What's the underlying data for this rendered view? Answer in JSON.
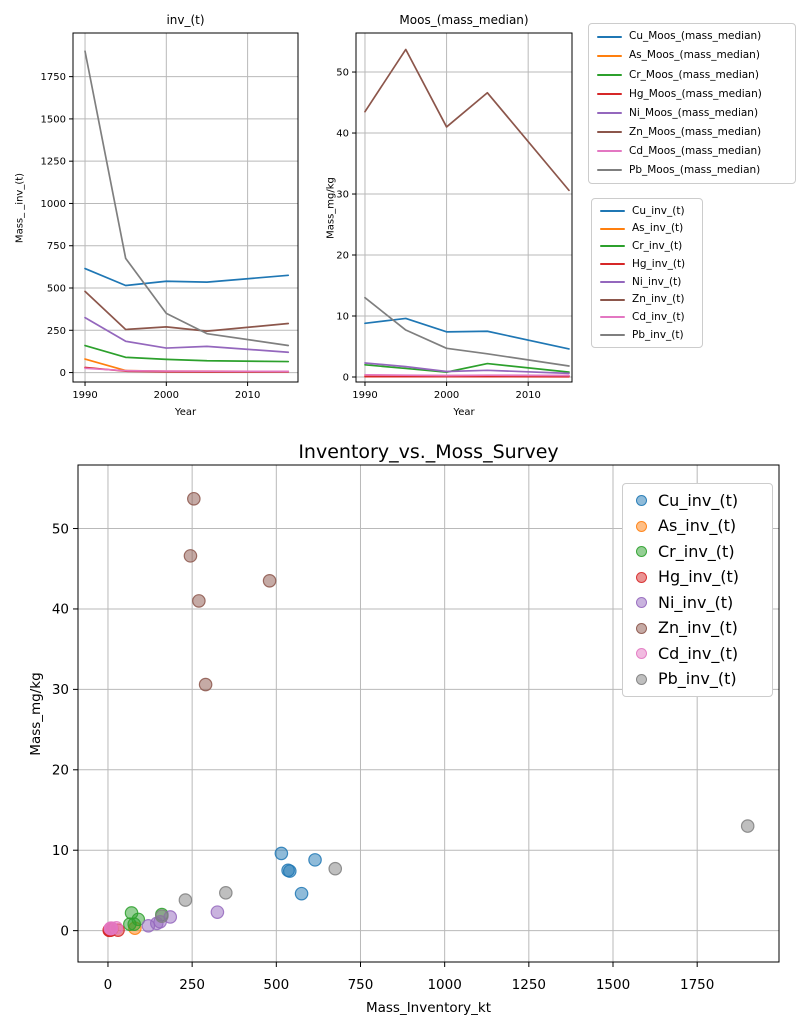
{
  "chart_data": [
    {
      "id": "inv",
      "type": "line",
      "title": "inv_(t)",
      "xlabel": "Year",
      "ylabel": "Mass_ _inv_(t)",
      "x": [
        1990,
        1995,
        2000,
        2005,
        2015
      ],
      "series": [
        {
          "name": "Cu_inv_(t)",
          "color": "#1f77b4",
          "values": [
            615,
            515,
            540,
            535,
            575
          ]
        },
        {
          "name": "As_inv_(t)",
          "color": "#ff7f0e",
          "values": [
            80,
            12,
            8,
            8,
            7
          ]
        },
        {
          "name": "Cr_inv_(t)",
          "color": "#2ca02c",
          "values": [
            160,
            90,
            78,
            70,
            65
          ]
        },
        {
          "name": "Hg_inv_(t)",
          "color": "#d62728",
          "values": [
            30,
            8,
            5,
            4,
            4
          ]
        },
        {
          "name": "Ni_inv_(t)",
          "color": "#9467bd",
          "values": [
            325,
            185,
            145,
            155,
            120
          ]
        },
        {
          "name": "Zn_inv_(t)",
          "color": "#8c564b",
          "values": [
            480,
            255,
            270,
            245,
            290
          ]
        },
        {
          "name": "Cd_inv_(t)",
          "color": "#e377c2",
          "values": [
            25,
            11,
            9,
            8,
            7
          ]
        },
        {
          "name": "Pb_inv_(t)",
          "color": "#7f7f7f",
          "values": [
            1900,
            675,
            350,
            230,
            160
          ]
        }
      ],
      "xticks": [
        1990,
        2000,
        2010
      ],
      "yticks": [
        0,
        250,
        500,
        750,
        1000,
        1250,
        1500,
        1750
      ],
      "xlim": [
        1988.52,
        2016.2
      ],
      "ylim": [
        -55.8,
        2008
      ],
      "grid": true,
      "legend_position": "outside-right"
    },
    {
      "id": "moss",
      "type": "line",
      "title": "Moos_(mass_median)",
      "xlabel": "Year",
      "ylabel": "Mass_mg/kg",
      "x": [
        1990,
        1995,
        2000,
        2005,
        2015
      ],
      "series": [
        {
          "name": "Cu_Moos_(mass_median)",
          "color": "#1f77b4",
          "values": [
            8.8,
            9.6,
            7.4,
            7.5,
            4.6
          ]
        },
        {
          "name": "As_Moos_(mass_median)",
          "color": "#ff7f0e",
          "values": [
            0.3,
            0.25,
            0.2,
            0.25,
            0.2
          ]
        },
        {
          "name": "Cr_Moos_(mass_median)",
          "color": "#2ca02c",
          "values": [
            2.0,
            1.4,
            0.8,
            2.2,
            0.8
          ]
        },
        {
          "name": "Hg_Moos_(mass_median)",
          "color": "#d62728",
          "values": [
            0.06,
            0.05,
            0.05,
            0.05,
            0.04
          ]
        },
        {
          "name": "Ni_Moos_(mass_median)",
          "color": "#9467bd",
          "values": [
            2.3,
            1.7,
            0.9,
            1.1,
            0.6
          ]
        },
        {
          "name": "Zn_Moos_(mass_median)",
          "color": "#8c564b",
          "values": [
            43.5,
            53.7,
            41.0,
            46.6,
            30.6
          ]
        },
        {
          "name": "Cd_Moos_(mass_median)",
          "color": "#e377c2",
          "values": [
            0.35,
            0.3,
            0.25,
            0.3,
            0.25
          ]
        },
        {
          "name": "Pb_Moos_(mass_median)",
          "color": "#7f7f7f",
          "values": [
            13.0,
            7.7,
            4.7,
            3.8,
            1.8
          ]
        }
      ],
      "xticks": [
        1990,
        2000,
        2010
      ],
      "yticks": [
        0,
        10,
        20,
        30,
        40,
        50
      ],
      "xlim": [
        1988.9,
        2015.37
      ],
      "ylim": [
        -0.82,
        56.4
      ],
      "grid": true
    },
    {
      "id": "scatter",
      "type": "scatter",
      "title": "Inventory_vs._Moss_Survey",
      "xlabel": "Mass_Inventory_kt",
      "ylabel": "Mass_mg/kg",
      "series": [
        {
          "name": "Cu_inv_(t)",
          "color": "#1f77b4",
          "x": [
            615,
            515,
            540,
            535,
            575
          ],
          "y": [
            8.8,
            9.6,
            7.4,
            7.5,
            4.6
          ]
        },
        {
          "name": "As_inv_(t)",
          "color": "#ff7f0e",
          "x": [
            80,
            12,
            8,
            8,
            7
          ],
          "y": [
            0.3,
            0.25,
            0.2,
            0.25,
            0.2
          ]
        },
        {
          "name": "Cr_inv_(t)",
          "color": "#2ca02c",
          "x": [
            160,
            90,
            78,
            70,
            65
          ],
          "y": [
            2.0,
            1.4,
            0.8,
            2.2,
            0.8
          ]
        },
        {
          "name": "Hg_inv_(t)",
          "color": "#d62728",
          "x": [
            30,
            8,
            5,
            4,
            4
          ],
          "y": [
            0.06,
            0.05,
            0.05,
            0.05,
            0.04
          ]
        },
        {
          "name": "Ni_inv_(t)",
          "color": "#9467bd",
          "x": [
            325,
            185,
            145,
            155,
            120
          ],
          "y": [
            2.3,
            1.7,
            0.9,
            1.1,
            0.6
          ]
        },
        {
          "name": "Zn_inv_(t)",
          "color": "#8c564b",
          "x": [
            480,
            255,
            270,
            245,
            290
          ],
          "y": [
            43.5,
            53.7,
            41.0,
            46.6,
            30.6
          ]
        },
        {
          "name": "Cd_inv_(t)",
          "color": "#e377c2",
          "x": [
            25,
            11,
            9,
            8,
            7
          ],
          "y": [
            0.35,
            0.3,
            0.25,
            0.3,
            0.25
          ]
        },
        {
          "name": "Pb_inv_(t)",
          "color": "#7f7f7f",
          "x": [
            1900,
            675,
            350,
            230,
            160
          ],
          "y": [
            13.0,
            7.7,
            4.7,
            3.8,
            1.8
          ]
        }
      ],
      "xticks": [
        0,
        250,
        500,
        750,
        1000,
        1250,
        1500,
        1750
      ],
      "yticks": [
        0,
        10,
        20,
        30,
        40,
        50
      ],
      "xlim": [
        -89,
        1993
      ],
      "ylim": [
        -3.9,
        57.9
      ],
      "grid": true,
      "legend_position": "upper-right-inside"
    }
  ],
  "legends": [
    {
      "id": "legend-moss",
      "marker": "line",
      "entries": [
        {
          "label": "Cu_Moos_(mass_median)",
          "color": "#1f77b4"
        },
        {
          "label": "As_Moos_(mass_median)",
          "color": "#ff7f0e"
        },
        {
          "label": "Cr_Moos_(mass_median)",
          "color": "#2ca02c"
        },
        {
          "label": "Hg_Moos_(mass_median)",
          "color": "#d62728"
        },
        {
          "label": "Ni_Moos_(mass_median)",
          "color": "#9467bd"
        },
        {
          "label": "Zn_Moos_(mass_median)",
          "color": "#8c564b"
        },
        {
          "label": "Cd_Moos_(mass_median)",
          "color": "#e377c2"
        },
        {
          "label": "Pb_Moos_(mass_median)",
          "color": "#7f7f7f"
        }
      ]
    },
    {
      "id": "legend-inv",
      "marker": "line",
      "entries": [
        {
          "label": "Cu_inv_(t)",
          "color": "#1f77b4"
        },
        {
          "label": "As_inv_(t)",
          "color": "#ff7f0e"
        },
        {
          "label": "Cr_inv_(t)",
          "color": "#2ca02c"
        },
        {
          "label": "Hg_inv_(t)",
          "color": "#d62728"
        },
        {
          "label": "Ni_inv_(t)",
          "color": "#9467bd"
        },
        {
          "label": "Zn_inv_(t)",
          "color": "#8c564b"
        },
        {
          "label": "Cd_inv_(t)",
          "color": "#e377c2"
        },
        {
          "label": "Pb_inv_(t)",
          "color": "#7f7f7f"
        }
      ]
    },
    {
      "id": "legend-scatter",
      "marker": "dot",
      "entries": [
        {
          "label": "Cu_inv_(t)",
          "color": "#1f77b4"
        },
        {
          "label": "As_inv_(t)",
          "color": "#ff7f0e"
        },
        {
          "label": "Cr_inv_(t)",
          "color": "#2ca02c"
        },
        {
          "label": "Hg_inv_(t)",
          "color": "#d62728"
        },
        {
          "label": "Ni_inv_(t)",
          "color": "#9467bd"
        },
        {
          "label": "Zn_inv_(t)",
          "color": "#8c564b"
        },
        {
          "label": "Cd_inv_(t)",
          "color": "#e377c2"
        },
        {
          "label": "Pb_inv_(t)",
          "color": "#7f7f7f"
        }
      ]
    }
  ],
  "style": {
    "grid_color": "#b9b9b9",
    "spine_color": "#000000",
    "tick_color": "#000000"
  }
}
